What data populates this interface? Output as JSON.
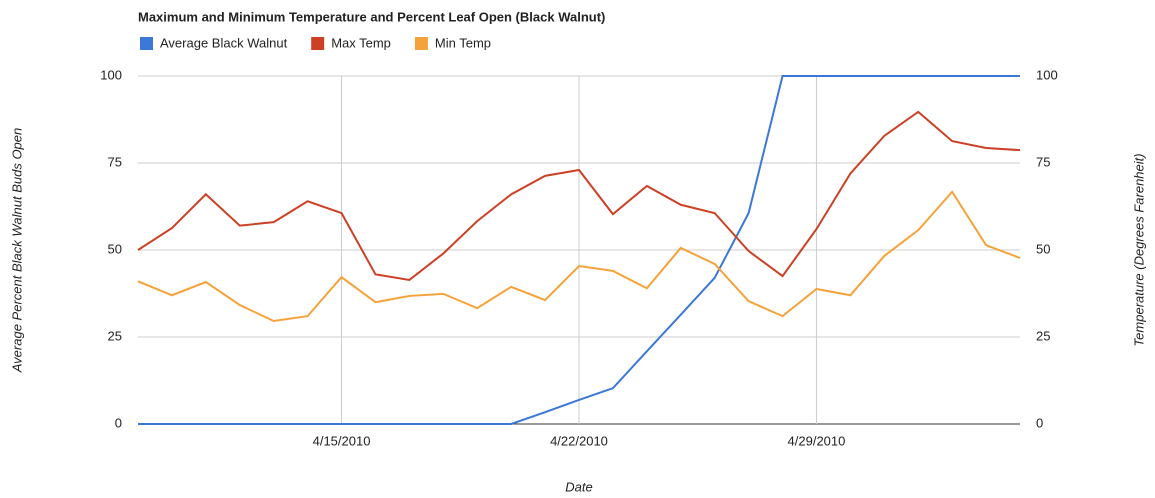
{
  "chart_data": {
    "type": "line",
    "title": "Maximum and Minimum Temperature and Percent Leaf Open (Black Walnut)",
    "x_label": "Date",
    "y_label": "Average Percent Black Walnut Buds Open",
    "y2_label": "Temperature (Degrees Farenheit)",
    "x": [
      "2010-04-09",
      "2010-04-10",
      "2010-04-11",
      "2010-04-12",
      "2010-04-13",
      "2010-04-14",
      "2010-04-15",
      "2010-04-16",
      "2010-04-17",
      "2010-04-18",
      "2010-04-19",
      "2010-04-20",
      "2010-04-21",
      "2010-04-22",
      "2010-04-23",
      "2010-04-24",
      "2010-04-25",
      "2010-04-26",
      "2010-04-27",
      "2010-04-28",
      "2010-04-29",
      "2010-04-30",
      "2010-05-01",
      "2010-05-02",
      "2010-05-03",
      "2010-05-04",
      "2010-05-05"
    ],
    "xlim": [
      "2010-04-09",
      "2010-05-05"
    ],
    "xticks": [
      {
        "value": "2010-04-15",
        "label": "4/15/2010"
      },
      {
        "value": "2010-04-22",
        "label": "4/22/2010"
      },
      {
        "value": "2010-04-29",
        "label": "4/29/2010"
      }
    ],
    "ylim": [
      0,
      100
    ],
    "yticks": [
      0,
      25,
      50,
      75,
      100
    ],
    "y2lim": [
      0,
      100
    ],
    "y2ticks": [
      0,
      25,
      50,
      75,
      100
    ],
    "grid": true,
    "legend": "top-left",
    "series": [
      {
        "name": "Average Black Walnut",
        "color": "#3c78d8",
        "values": [
          0,
          0,
          0,
          0,
          0,
          0,
          0,
          0,
          0,
          0,
          0,
          0,
          3.4,
          6.9,
          10.3,
          20.9,
          31.4,
          42,
          60.6,
          100,
          100,
          100,
          100,
          100,
          100,
          100,
          100
        ]
      },
      {
        "name": "Max Temp",
        "color": "#cc4125",
        "axis": "y2",
        "values": [
          50,
          56.3,
          66,
          57,
          58,
          64,
          60.6,
          43,
          41.4,
          49,
          58.3,
          66,
          71.3,
          73,
          60.3,
          68.4,
          63,
          60.6,
          49.7,
          42.5,
          56,
          72,
          82.8,
          89.7,
          81.3,
          79.3,
          78.7
        ]
      },
      {
        "name": "Min Temp",
        "color": "#f6a23a",
        "axis": "y2",
        "values": [
          41,
          37,
          40.8,
          34.2,
          29.6,
          31,
          42.2,
          35,
          36.8,
          37.4,
          33.3,
          39.4,
          35.6,
          45.4,
          44,
          39,
          50.6,
          46,
          35.3,
          31,
          38.8,
          37,
          48.3,
          55.7,
          66.7,
          51.4,
          47.7
        ]
      }
    ]
  }
}
